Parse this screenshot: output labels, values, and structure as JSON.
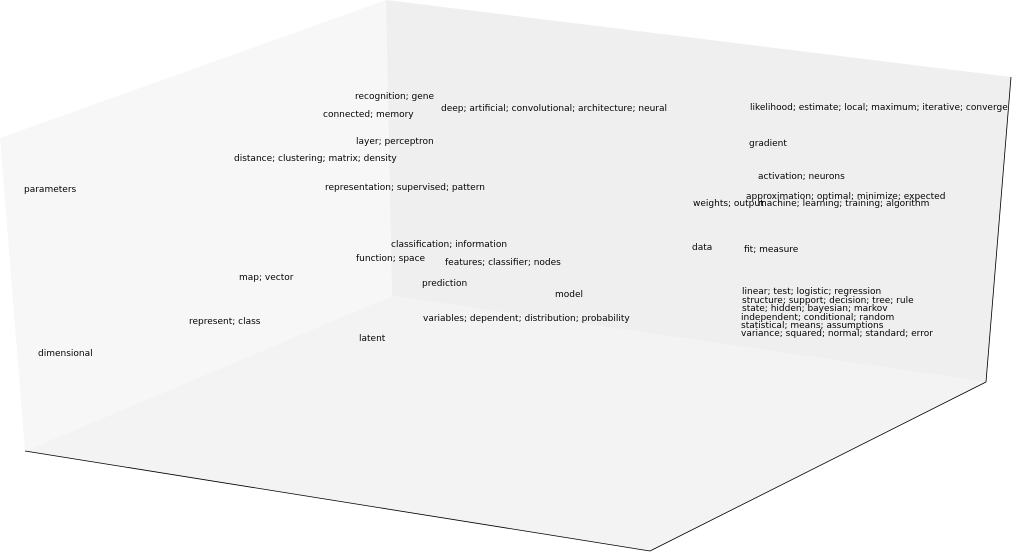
{
  "chart_data": {
    "type": "scatter",
    "title": "",
    "xlabel": "",
    "ylabel": "",
    "zlabel": "",
    "projection": "3d",
    "grid": false,
    "axes_ticks": false,
    "colors": {
      "pane_left": "#f7f7f7",
      "pane_back": "#efefef",
      "pane_floor": "#f3f3f3",
      "edge": "#000000",
      "text": "#000000"
    },
    "labels": [
      "recognition; gene",
      "deep; artificial; convolutional; architecture; neural",
      "likelihood; estimate; local; maximum; iterative; converge",
      "connected; memory",
      "layer; perceptron",
      "gradient",
      "distance; clustering; matrix; density",
      "activation; neurons",
      "parameters",
      "representation; supervised; pattern",
      "approximation; optimal; minimize; expected",
      "weights; output",
      "machine; learning; training; algorithm",
      "classification; information",
      "data",
      "fit; measure",
      "function; space",
      "features; classifier; nodes",
      "map; vector",
      "prediction",
      "linear; test; logistic; regression",
      "model",
      "structure; support; decision; tree; rule",
      "state; hidden; bayesian; markov",
      "independent; conditional; random",
      "represent; class",
      "variables; dependent; distribution; probability",
      "statistical; means; assumptions",
      "latent",
      "variance; squared; normal; standard; error",
      "dimensional"
    ]
  }
}
